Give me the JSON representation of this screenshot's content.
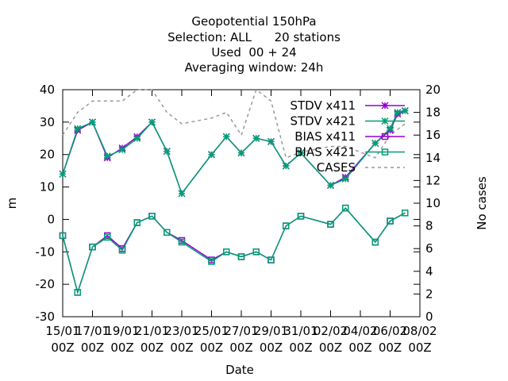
{
  "chart_data": {
    "type": "line",
    "title_lines": [
      "Geopotential 150hPa",
      "Selection: ALL      20 stations",
      "Used  00 + 24",
      "Averaging window: 24h"
    ],
    "xlabel": "Date",
    "ylabel": "m",
    "y2label": "No cases",
    "xlim": [
      0,
      24
    ],
    "ylim": [
      -30,
      40
    ],
    "y2lim": [
      0,
      20
    ],
    "x_ticks": [
      {
        "x": 0,
        "line1": "15/01",
        "line2": "00Z"
      },
      {
        "x": 2,
        "line1": "17/01",
        "line2": "00Z"
      },
      {
        "x": 4,
        "line1": "19/01",
        "line2": "00Z"
      },
      {
        "x": 6,
        "line1": "21/01",
        "line2": "00Z"
      },
      {
        "x": 8,
        "line1": "23/01",
        "line2": "00Z"
      },
      {
        "x": 10,
        "line1": "25/01",
        "line2": "00Z"
      },
      {
        "x": 12,
        "line1": "27/01",
        "line2": "00Z"
      },
      {
        "x": 14,
        "line1": "29/01",
        "line2": "00Z"
      },
      {
        "x": 16,
        "line1": "31/01",
        "line2": "00Z"
      },
      {
        "x": 18,
        "line1": "02/02",
        "line2": "00Z"
      },
      {
        "x": 20,
        "line1": "04/02",
        "line2": "00Z"
      },
      {
        "x": 22,
        "line1": "06/02",
        "line2": "00Z"
      },
      {
        "x": 24,
        "line1": "08/02",
        "line2": "00Z"
      }
    ],
    "y_ticks": [
      "-30",
      "-20",
      "-10",
      "0",
      "10",
      "20",
      "30",
      "40"
    ],
    "y2_ticks": [
      "0",
      "2",
      "4",
      "6",
      "8",
      "10",
      "12",
      "14",
      "16",
      "18",
      "20"
    ],
    "x": [
      0,
      1,
      2,
      3,
      4,
      5,
      6,
      7,
      8,
      10,
      11,
      12,
      13,
      14,
      15,
      16,
      18,
      19,
      21,
      22,
      22.5,
      23
    ],
    "series": [
      {
        "name": "STDV x411",
        "color": "#9400d3",
        "marker": "star",
        "axis": "y1",
        "dash": false,
        "values": [
          14,
          27.5,
          30,
          19,
          22,
          25.5,
          30,
          21,
          8,
          20,
          25.5,
          20.5,
          25,
          24,
          16.5,
          20.5,
          10.5,
          13,
          23.5,
          27.5,
          32.5,
          33.5
        ]
      },
      {
        "name": "STDV x421",
        "color": "#009e73",
        "marker": "star",
        "axis": "y1",
        "dash": false,
        "values": [
          14,
          28,
          30,
          19.5,
          21.5,
          25,
          30,
          21,
          8,
          20,
          25.5,
          20.5,
          25,
          24,
          16.5,
          20.5,
          10.5,
          12.5,
          23.5,
          28,
          33,
          33.5
        ]
      },
      {
        "name": "BIAS x411",
        "color": "#9400d3",
        "marker": "square",
        "axis": "y1",
        "dash": false,
        "values": [
          -5,
          -22.5,
          -8.5,
          -5,
          -9,
          -1,
          1,
          -4,
          -6.5,
          -12.5,
          -10,
          -11.5,
          -10,
          -12.5,
          -2,
          1,
          -1.5,
          3.5,
          -7,
          -0.5,
          null,
          2
        ]
      },
      {
        "name": "BIAS x421",
        "color": "#009e73",
        "marker": "square",
        "axis": "y1",
        "dash": false,
        "values": [
          -5,
          -22.5,
          -8.5,
          -5.5,
          -9.5,
          -1,
          1,
          -4,
          -7,
          -13,
          -10,
          -11.5,
          -10,
          -12.5,
          -2,
          1,
          -1.5,
          3.5,
          -7,
          -0.5,
          null,
          2
        ]
      },
      {
        "name": "CASES",
        "color": "#999999",
        "marker": "none",
        "axis": "y2",
        "dash": true,
        "values": [
          16,
          18,
          19,
          19,
          19,
          20,
          20,
          18,
          17,
          17.5,
          18,
          16,
          20,
          19,
          14,
          14.5,
          15,
          15,
          14,
          16,
          16.5,
          17
        ]
      }
    ],
    "legend_position": "top-right",
    "grid": false
  }
}
